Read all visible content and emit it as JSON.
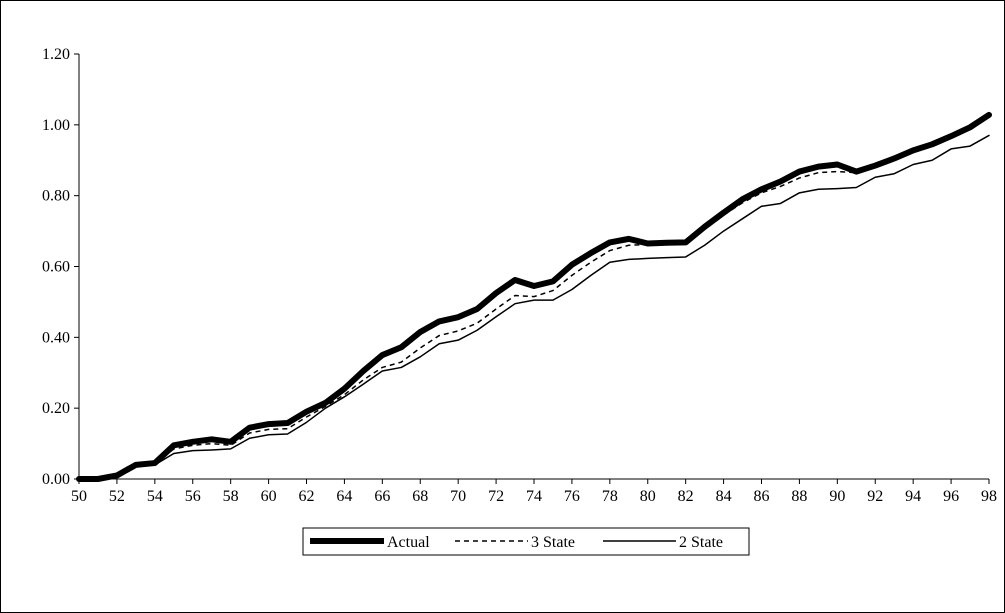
{
  "chart_data": {
    "type": "line",
    "title": "",
    "xlabel": "",
    "ylabel": "",
    "x": [
      50,
      51,
      52,
      53,
      54,
      55,
      56,
      57,
      58,
      59,
      60,
      61,
      62,
      63,
      64,
      65,
      66,
      67,
      68,
      69,
      70,
      71,
      72,
      73,
      74,
      75,
      76,
      77,
      78,
      79,
      80,
      81,
      82,
      83,
      84,
      85,
      86,
      87,
      88,
      89,
      90,
      91,
      92,
      93,
      94,
      95,
      96,
      97,
      98
    ],
    "xticks": [
      "50",
      "52",
      "54",
      "56",
      "58",
      "60",
      "62",
      "64",
      "66",
      "68",
      "70",
      "72",
      "74",
      "76",
      "78",
      "80",
      "82",
      "84",
      "86",
      "88",
      "90",
      "92",
      "94",
      "96",
      "98"
    ],
    "xlim": [
      50,
      98
    ],
    "ylim": [
      0,
      1.2
    ],
    "yticks": [
      "0.00",
      "0.20",
      "0.40",
      "0.60",
      "0.80",
      "1.00",
      "1.20"
    ],
    "grid": false,
    "legend_position": "bottom-center",
    "series": [
      {
        "name": "Actual",
        "style": "thick-solid",
        "color": "#000000",
        "values": [
          0.0,
          0.0,
          0.01,
          0.04,
          0.045,
          0.095,
          0.105,
          0.112,
          0.105,
          0.145,
          0.155,
          0.158,
          0.19,
          0.215,
          0.255,
          0.305,
          0.35,
          0.372,
          0.415,
          0.445,
          0.457,
          0.48,
          0.525,
          0.562,
          0.545,
          0.558,
          0.605,
          0.638,
          0.668,
          0.678,
          0.665,
          0.667,
          0.668,
          0.712,
          0.752,
          0.79,
          0.818,
          0.84,
          0.868,
          0.882,
          0.888,
          0.868,
          0.885,
          0.905,
          0.928,
          0.945,
          0.968,
          0.993,
          1.028
        ]
      },
      {
        "name": "3 State",
        "style": "dashed",
        "color": "#000000",
        "values": [
          0.0,
          0.0,
          0.01,
          0.038,
          0.042,
          0.085,
          0.095,
          0.1,
          0.095,
          0.13,
          0.14,
          0.142,
          0.175,
          0.205,
          0.238,
          0.28,
          0.315,
          0.33,
          0.37,
          0.405,
          0.418,
          0.44,
          0.48,
          0.518,
          0.515,
          0.532,
          0.575,
          0.612,
          0.645,
          0.66,
          0.662,
          0.663,
          0.665,
          0.705,
          0.745,
          0.78,
          0.808,
          0.826,
          0.85,
          0.865,
          0.868,
          0.865,
          0.882,
          0.9,
          0.925,
          0.948,
          0.973,
          0.995,
          1.03
        ]
      },
      {
        "name": "2 State",
        "style": "thin-solid",
        "color": "#000000",
        "values": [
          0.0,
          0.0,
          0.005,
          0.035,
          0.04,
          0.072,
          0.08,
          0.082,
          0.085,
          0.115,
          0.125,
          0.127,
          0.16,
          0.2,
          0.232,
          0.268,
          0.305,
          0.315,
          0.345,
          0.382,
          0.392,
          0.42,
          0.458,
          0.495,
          0.505,
          0.505,
          0.535,
          0.575,
          0.612,
          0.62,
          0.623,
          0.625,
          0.627,
          0.66,
          0.7,
          0.735,
          0.77,
          0.778,
          0.808,
          0.818,
          0.82,
          0.823,
          0.852,
          0.862,
          0.888,
          0.9,
          0.932,
          0.94,
          0.97
        ]
      }
    ]
  }
}
